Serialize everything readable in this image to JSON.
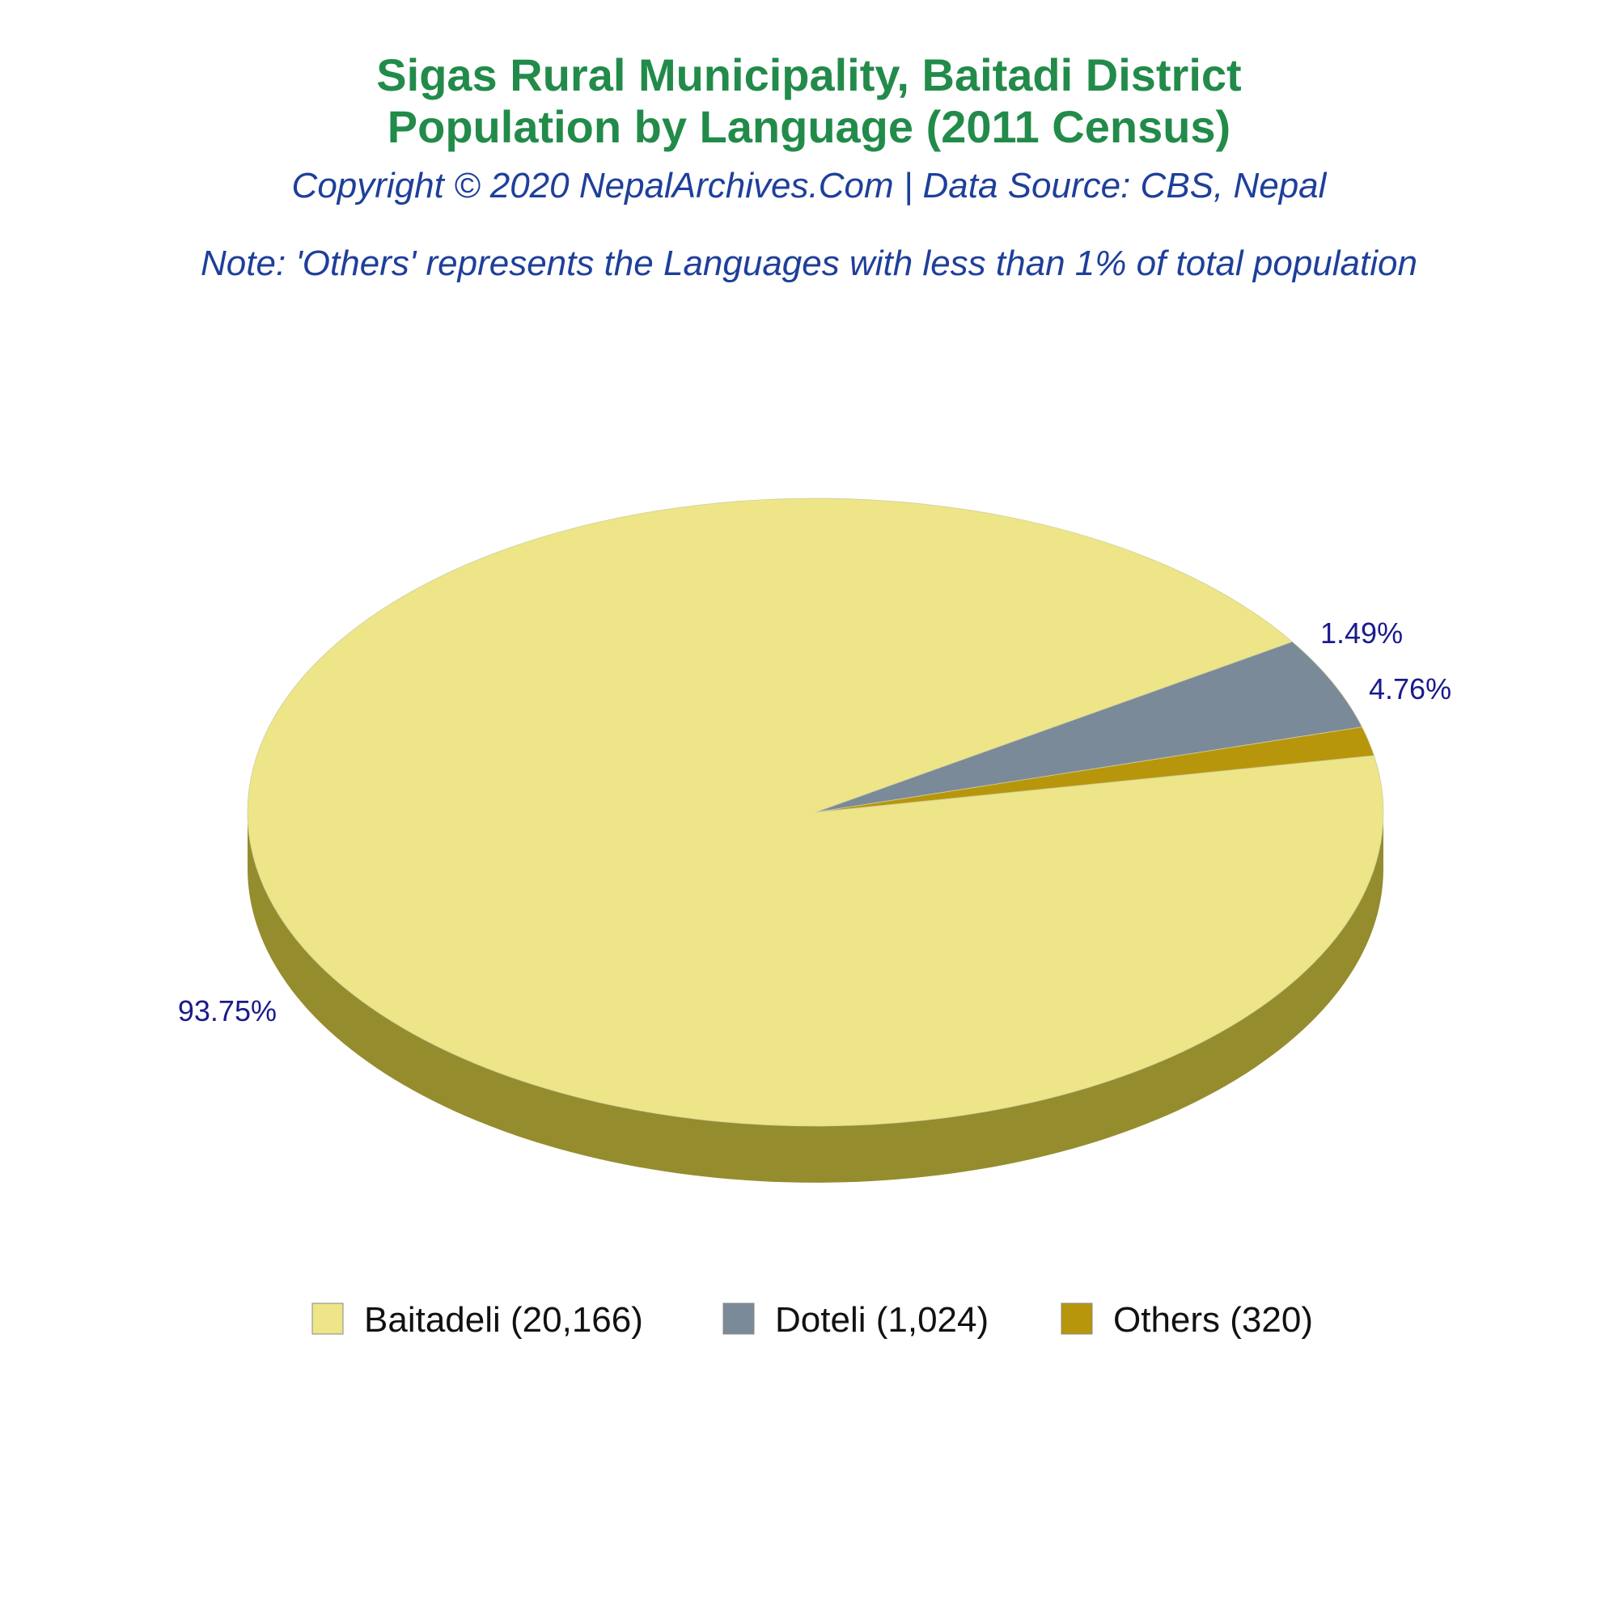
{
  "chart_data": {
    "type": "pie",
    "title_line1": "Sigas Rural Municipality, Baitadi District",
    "title_line2": "Population by Language (2011 Census)",
    "subtitle": "Copyright © 2020 NepalArchives.Com | Data Source: CBS, Nepal",
    "note": "Note: 'Others' represents the Languages with less than 1% of total population",
    "slices": [
      {
        "label": "Baitadeli",
        "value": 20166,
        "percent": 93.75,
        "percent_label": "93.75%",
        "legend_label": "Baitadeli (20,166)",
        "color": "#EDE587",
        "side_color": "#958C2E"
      },
      {
        "label": "Doteli",
        "value": 1024,
        "percent": 4.76,
        "percent_label": "4.76%",
        "legend_label": "Doteli (1,024)",
        "color": "#7A8A99",
        "side_color": "#4E5A66"
      },
      {
        "label": "Others",
        "value": 320,
        "percent": 1.49,
        "percent_label": "1.49%",
        "legend_label": "Others (320)",
        "color": "#B8960B",
        "side_color": "#7A6307"
      }
    ],
    "legend_position": "bottom"
  }
}
